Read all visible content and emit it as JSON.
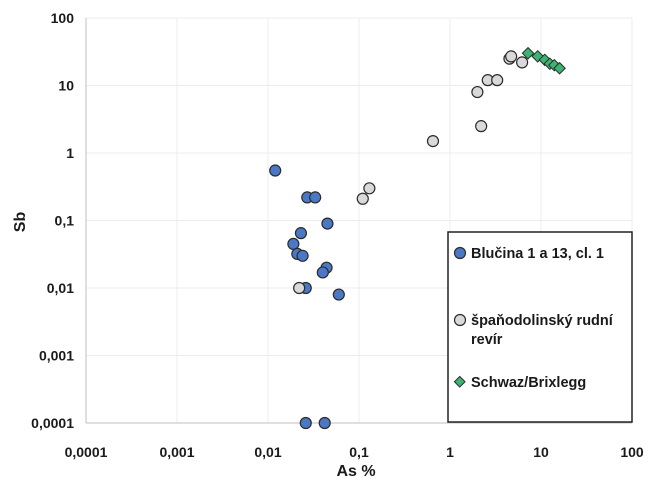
{
  "chart_data": {
    "type": "scatter",
    "xlabel": "As %",
    "ylabel": "Sb",
    "x_scale": "log",
    "y_scale": "log",
    "xlim": [
      0.0001,
      100
    ],
    "ylim": [
      0.0001,
      100
    ],
    "x_ticks": [
      "0,0001",
      "0,001",
      "0,01",
      "0,1",
      "1",
      "10",
      "100"
    ],
    "y_ticks": [
      "0,0001",
      "0,001",
      "0,01",
      "0,1",
      "1",
      "10",
      "100"
    ],
    "grid": true,
    "legend_position": "bottom-right",
    "series": [
      {
        "name": "Blučina 1 a 13, cl. 1",
        "marker": "circle",
        "color": "#4a78c4",
        "points": [
          [
            0.012,
            0.55
          ],
          [
            0.027,
            0.22
          ],
          [
            0.033,
            0.22
          ],
          [
            0.045,
            0.09
          ],
          [
            0.023,
            0.065
          ],
          [
            0.019,
            0.045
          ],
          [
            0.021,
            0.032
          ],
          [
            0.024,
            0.03
          ],
          [
            0.044,
            0.02
          ],
          [
            0.04,
            0.017
          ],
          [
            0.026,
            0.01
          ],
          [
            0.06,
            0.008
          ],
          [
            0.026,
            0.0001
          ],
          [
            0.042,
            0.0001
          ]
        ]
      },
      {
        "name": "špaňodolinský rudní revír",
        "marker": "circle",
        "color": "#d9d9d9",
        "points": [
          [
            0.022,
            0.01
          ],
          [
            0.13,
            0.3
          ],
          [
            0.11,
            0.21
          ],
          [
            0.65,
            1.5
          ],
          [
            2.2,
            2.5
          ],
          [
            2.0,
            8.0
          ],
          [
            2.6,
            12
          ],
          [
            3.3,
            12
          ],
          [
            4.5,
            25
          ],
          [
            4.7,
            27
          ],
          [
            6.2,
            22
          ]
        ]
      },
      {
        "name": "Schwaz/Brixlegg",
        "marker": "diamond",
        "color": "#3cb371",
        "points": [
          [
            7.2,
            30
          ],
          [
            9.2,
            27
          ],
          [
            11.0,
            24
          ],
          [
            12.5,
            21
          ],
          [
            14.0,
            20
          ],
          [
            16.0,
            18
          ]
        ]
      }
    ]
  }
}
